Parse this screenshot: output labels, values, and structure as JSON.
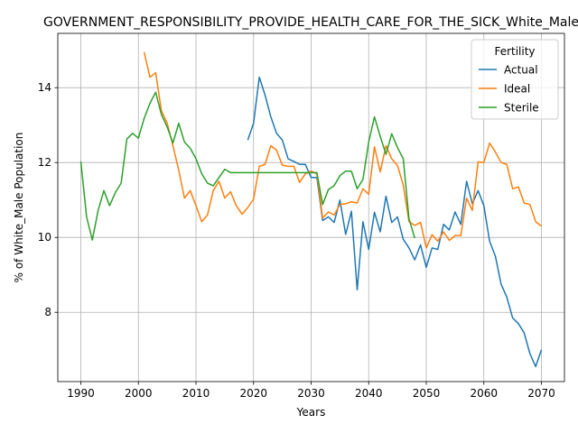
{
  "chart_data": {
    "type": "line",
    "title": "GOVERNMENT_RESPONSIBILITY_PROVIDE_HEALTH_CARE_FOR_THE_SICK_White_Male",
    "xlabel": "Years",
    "ylabel": "% of White_Male Population",
    "xlim": [
      1986,
      2074
    ],
    "ylim": [
      6.15,
      15.45
    ],
    "xticks": [
      1990,
      2000,
      2010,
      2020,
      2030,
      2040,
      2050,
      2060,
      2070
    ],
    "yticks": [
      8,
      10,
      12,
      14
    ],
    "grid": true,
    "legend": {
      "title": "Fertility",
      "placement": "top-right"
    },
    "series": [
      {
        "name": "Actual",
        "color": "#1f77b4",
        "x": [
          2019,
          2020,
          2021,
          2022,
          2023,
          2024,
          2025,
          2026,
          2027,
          2028,
          2029,
          2030,
          2031,
          2032,
          2033,
          2034,
          2035,
          2036,
          2037,
          2038,
          2039,
          2040,
          2041,
          2042,
          2043,
          2044,
          2045,
          2046,
          2047,
          2048,
          2049,
          2050,
          2051,
          2052,
          2053,
          2054,
          2055,
          2056,
          2057,
          2058,
          2059,
          2060,
          2061,
          2062,
          2063,
          2064,
          2065,
          2066,
          2067,
          2068,
          2069,
          2070
        ],
        "y": [
          12.6,
          13.05,
          14.28,
          13.8,
          13.22,
          12.78,
          12.6,
          12.1,
          12.03,
          11.95,
          11.95,
          11.6,
          11.6,
          10.45,
          10.55,
          10.4,
          11.0,
          10.08,
          10.7,
          8.6,
          10.42,
          9.68,
          10.67,
          10.15,
          11.1,
          10.4,
          10.55,
          9.95,
          9.72,
          9.4,
          9.8,
          9.2,
          9.72,
          9.68,
          10.35,
          10.2,
          10.68,
          10.35,
          11.5,
          10.9,
          11.25,
          10.85,
          9.9,
          9.5,
          8.75,
          8.4,
          7.85,
          7.7,
          7.45,
          6.9,
          6.55,
          7.0
        ]
      },
      {
        "name": "Ideal",
        "color": "#ff7f0e",
        "x": [
          2001,
          2002,
          2003,
          2004,
          2005,
          2006,
          2007,
          2008,
          2009,
          2010,
          2011,
          2012,
          2013,
          2014,
          2015,
          2016,
          2017,
          2018,
          2019,
          2020,
          2021,
          2022,
          2023,
          2024,
          2025,
          2026,
          2027,
          2028,
          2029,
          2030,
          2031,
          2032,
          2033,
          2034,
          2035,
          2036,
          2037,
          2038,
          2039,
          2040,
          2041,
          2042,
          2043,
          2044,
          2045,
          2046,
          2047,
          2048,
          2049,
          2050,
          2051,
          2052,
          2053,
          2054,
          2055,
          2056,
          2057,
          2058,
          2059,
          2060,
          2061,
          2062,
          2063,
          2064,
          2065,
          2066,
          2067,
          2068,
          2069,
          2070
        ],
        "y": [
          14.95,
          14.28,
          14.4,
          13.38,
          13.05,
          12.45,
          11.8,
          11.05,
          11.25,
          10.85,
          10.42,
          10.6,
          11.25,
          11.5,
          11.05,
          11.22,
          10.85,
          10.62,
          10.8,
          11.02,
          11.9,
          11.95,
          12.45,
          12.33,
          11.93,
          11.9,
          11.9,
          11.47,
          11.7,
          11.77,
          11.7,
          10.52,
          10.68,
          10.6,
          10.88,
          10.9,
          10.95,
          10.92,
          11.3,
          11.15,
          12.42,
          11.75,
          12.45,
          12.1,
          11.92,
          11.4,
          10.42,
          10.32,
          10.4,
          9.72,
          10.07,
          9.9,
          10.15,
          9.92,
          10.05,
          10.05,
          11.05,
          10.72,
          12.02,
          12.0,
          12.52,
          12.28,
          12.0,
          11.95,
          11.3,
          11.35,
          10.92,
          10.88,
          10.42,
          10.3
        ]
      },
      {
        "name": "Sterile",
        "color": "#2ca02c",
        "x": [
          1990,
          1991,
          1992,
          1993,
          1994,
          1995,
          1996,
          1997,
          1998,
          1999,
          2000,
          2001,
          2002,
          2003,
          2004,
          2005,
          2006,
          2007,
          2008,
          2009,
          2010,
          2011,
          2012,
          2013,
          2014,
          2015,
          2016,
          2017,
          2018,
          2019,
          2020,
          2021,
          2022,
          2023,
          2024,
          2025,
          2026,
          2027,
          2028,
          2029,
          2030,
          2031,
          2032,
          2033,
          2034,
          2035,
          2036,
          2037,
          2038,
          2039,
          2040,
          2041,
          2042,
          2043,
          2044,
          2045,
          2046,
          2047,
          2048
        ],
        "y": [
          12.03,
          10.55,
          9.93,
          10.72,
          11.25,
          10.85,
          11.2,
          11.45,
          12.63,
          12.78,
          12.65,
          13.18,
          13.58,
          13.88,
          13.28,
          12.95,
          12.52,
          13.05,
          12.55,
          12.38,
          12.1,
          11.7,
          11.45,
          11.38,
          11.6,
          11.82,
          11.73,
          11.73,
          11.73,
          11.73,
          11.73,
          11.73,
          11.73,
          11.73,
          11.73,
          11.73,
          11.73,
          11.73,
          11.73,
          11.73,
          11.73,
          11.73,
          10.88,
          11.28,
          11.38,
          11.65,
          11.77,
          11.77,
          11.3,
          11.55,
          12.55,
          13.22,
          12.7,
          12.22,
          12.77,
          12.4,
          12.1,
          10.5,
          9.98
        ]
      }
    ]
  }
}
